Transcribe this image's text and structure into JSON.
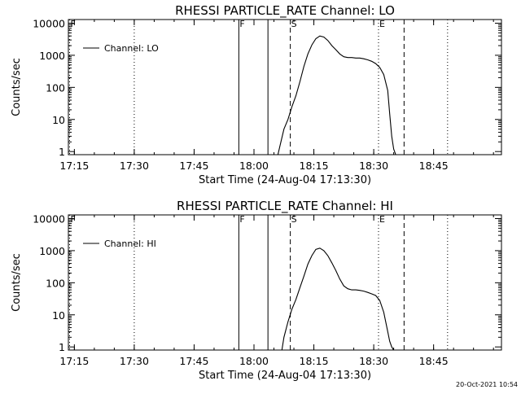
{
  "footer": {
    "timestamp": "20-Oct-2021 10:54"
  },
  "chart_data": [
    {
      "type": "line",
      "title": "RHESSI PARTICLE_RATE Channel: LO",
      "xlabel": "Start Time (24-Aug-04 17:13:30)",
      "ylabel": "Counts/sec",
      "legend": {
        "label": "Channel: LO",
        "placement": "top-left"
      },
      "x_unit": "minutes after 17:13:30 UT",
      "xlim": [
        0,
        108.5
      ],
      "ylim": [
        0.8,
        13000
      ],
      "yscale": "log",
      "x_ticks": [
        1.5,
        16.5,
        31.5,
        46.5,
        61.5,
        76.5,
        91.5
      ],
      "x_tick_labels": [
        "17:15",
        "17:30",
        "17:45",
        "18:00",
        "18:15",
        "18:30",
        "18:45"
      ],
      "y_ticks": [
        1,
        10,
        100,
        1000,
        10000
      ],
      "y_tick_labels": [
        "1",
        "10",
        "100",
        "1000",
        "10000"
      ],
      "markers": [
        {
          "label": "F",
          "x": 0.3,
          "style": "dotted"
        },
        {
          "label": "F",
          "x": 42.7,
          "style": "solid"
        },
        {
          "label": "S",
          "x": 55.6,
          "style": "dashed"
        },
        {
          "label": "E",
          "x": 77.7,
          "style": "dotted"
        }
      ],
      "vlines": [
        {
          "x": 16.5,
          "style": "dotted"
        },
        {
          "x": 50.0,
          "style": "solid"
        },
        {
          "x": 84.1,
          "style": "dashed"
        },
        {
          "x": 95.0,
          "style": "dotted"
        }
      ],
      "series": [
        {
          "name": "Channel: LO",
          "x": [
            52.5,
            53.0,
            54.0,
            55.0,
            56.0,
            57.0,
            58.0,
            59.0,
            60.0,
            61.0,
            62.0,
            63.0,
            64.0,
            65.0,
            66.0,
            67.0,
            68.0,
            69.0,
            70.0,
            71.0,
            72.0,
            73.0,
            74.0,
            75.0,
            76.0,
            77.0,
            78.0,
            79.0,
            80.0,
            80.5,
            81.0,
            81.5,
            82.0
          ],
          "y": [
            0.8,
            1.5,
            5,
            10,
            25,
            55,
            150,
            450,
            1100,
            2100,
            3300,
            4000,
            3700,
            2900,
            2000,
            1500,
            1100,
            900,
            850,
            850,
            820,
            820,
            780,
            720,
            650,
            550,
            420,
            250,
            80,
            15,
            3,
            1.2,
            0.8
          ]
        }
      ]
    },
    {
      "type": "line",
      "title": "RHESSI PARTICLE_RATE Channel: HI",
      "xlabel": "Start Time (24-Aug-04 17:13:30)",
      "ylabel": "Counts/sec",
      "legend": {
        "label": "Channel: HI",
        "placement": "top-left"
      },
      "x_unit": "minutes after 17:13:30 UT",
      "xlim": [
        0,
        108.5
      ],
      "ylim": [
        0.8,
        13000
      ],
      "yscale": "log",
      "x_ticks": [
        1.5,
        16.5,
        31.5,
        46.5,
        61.5,
        76.5,
        91.5
      ],
      "x_tick_labels": [
        "17:15",
        "17:30",
        "17:45",
        "18:00",
        "18:15",
        "18:30",
        "18:45"
      ],
      "y_ticks": [
        1,
        10,
        100,
        1000,
        10000
      ],
      "y_tick_labels": [
        "1",
        "10",
        "100",
        "1000",
        "10000"
      ],
      "markers": [
        {
          "label": "F",
          "x": 0.3,
          "style": "dotted"
        },
        {
          "label": "F",
          "x": 42.7,
          "style": "solid"
        },
        {
          "label": "S",
          "x": 55.6,
          "style": "dashed"
        },
        {
          "label": "E",
          "x": 77.7,
          "style": "dotted"
        }
      ],
      "vlines": [
        {
          "x": 16.5,
          "style": "dotted"
        },
        {
          "x": 50.0,
          "style": "solid"
        },
        {
          "x": 84.1,
          "style": "dashed"
        },
        {
          "x": 95.0,
          "style": "dotted"
        }
      ],
      "series": [
        {
          "name": "Channel: HI",
          "x": [
            53.5,
            54.0,
            55.0,
            56.0,
            57.0,
            58.0,
            59.0,
            60.0,
            61.0,
            62.0,
            63.0,
            64.0,
            65.0,
            66.0,
            67.0,
            68.0,
            69.0,
            70.0,
            71.0,
            72.0,
            73.0,
            74.0,
            75.0,
            76.0,
            77.0,
            78.0,
            79.0,
            80.0,
            80.5,
            81.0,
            81.5
          ],
          "y": [
            0.8,
            2,
            6,
            15,
            30,
            70,
            160,
            380,
            700,
            1100,
            1200,
            1000,
            700,
            420,
            240,
            130,
            80,
            65,
            60,
            60,
            58,
            55,
            50,
            45,
            40,
            28,
            12,
            3,
            1.5,
            1.0,
            0.8
          ]
        }
      ]
    }
  ]
}
